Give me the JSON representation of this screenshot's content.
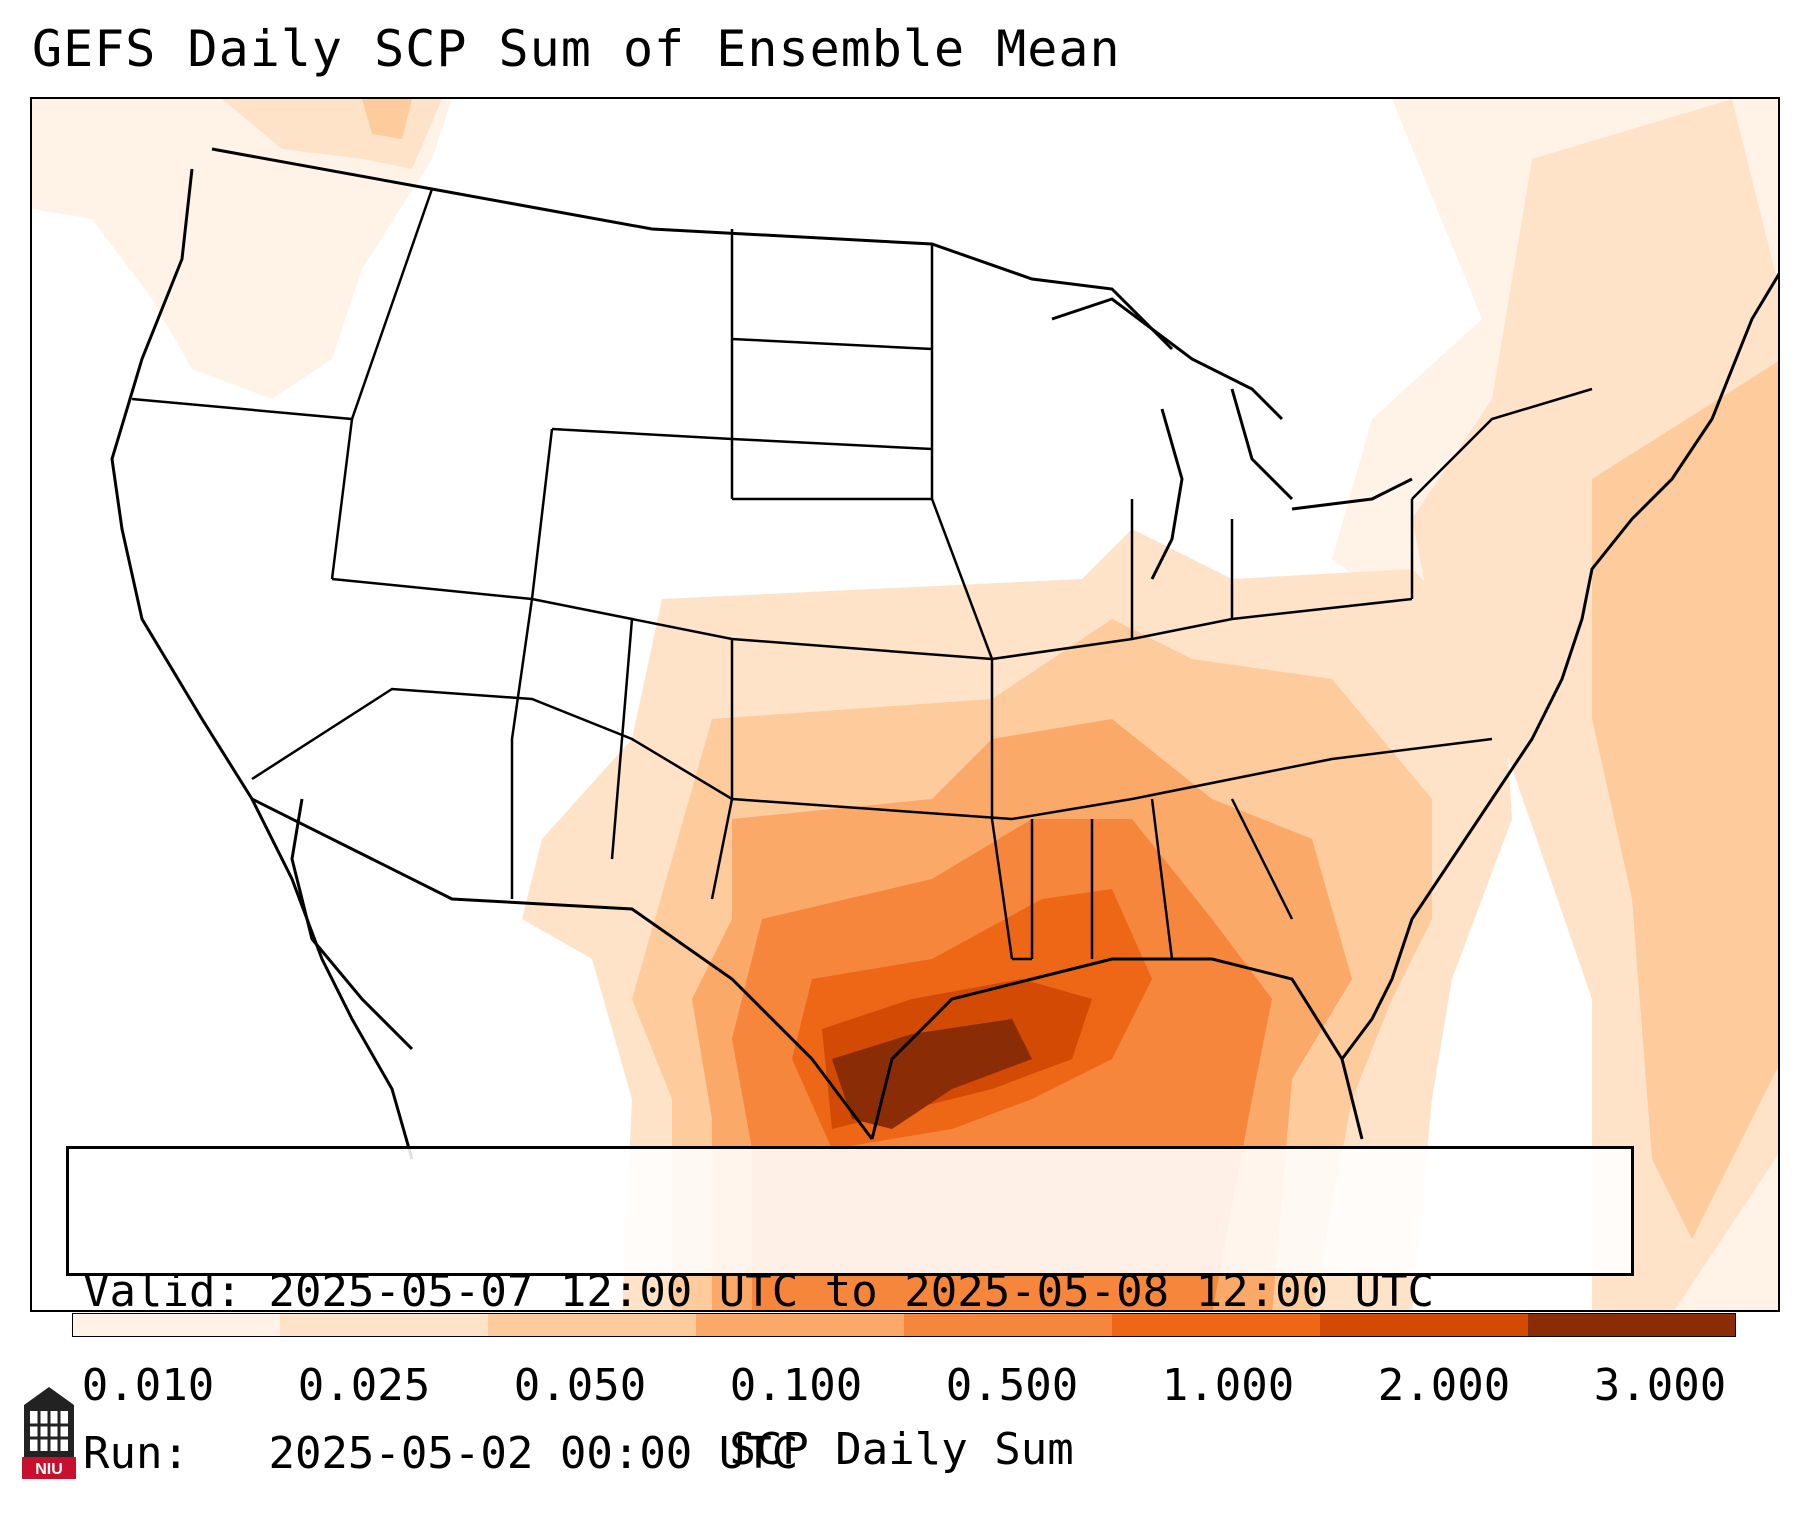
{
  "title": "GEFS Daily SCP Sum of Ensemble Mean",
  "info": {
    "valid_label": "Valid:",
    "valid_value": "2025-05-07 12:00 UTC to 2025-05-08 12:00 UTC",
    "run_label": "Run:",
    "run_value": "2025-05-02 00:00 UTC"
  },
  "colorbar": {
    "label": "SCP Daily Sum",
    "ticks": [
      "0.010",
      "0.025",
      "0.050",
      "0.100",
      "0.500",
      "1.000",
      "2.000",
      "3.000"
    ],
    "colors": [
      "#fff3e8",
      "#fee3c9",
      "#fdcb9c",
      "#fba968",
      "#f5863c",
      "#ed6716",
      "#d24a03",
      "#8a2c05"
    ]
  },
  "logo": {
    "text": "NIU",
    "color": "#c8102e"
  },
  "colors": {
    "level1": "#fff3e8",
    "level2": "#fee3c9",
    "level3": "#fdcb9c",
    "level4": "#fba968",
    "level5": "#f5863c",
    "level6": "#ed6716",
    "level7": "#d24a03",
    "level8": "#8a2c05"
  }
}
